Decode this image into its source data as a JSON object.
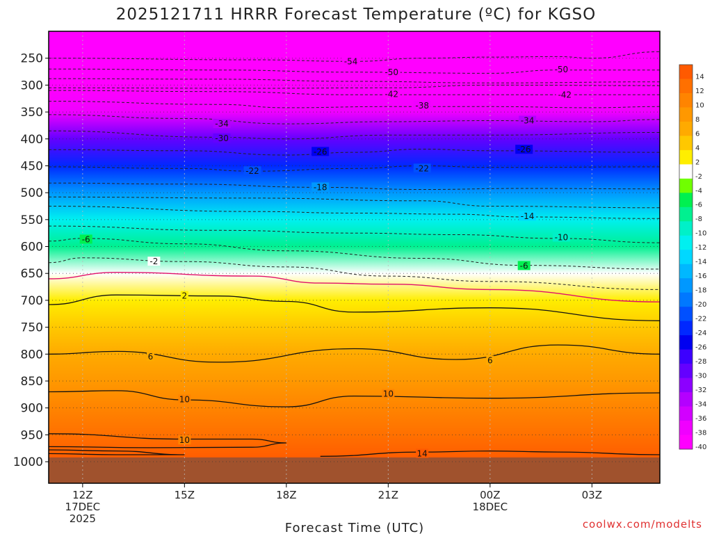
{
  "chart_data": {
    "type": "heatmap",
    "title": "2025121711 HRRR Forecast Temperature (ºC) for KGSO",
    "xlabel": "Forecast Time (UTC)",
    "credit": "coolwx.com/modelts",
    "x_ticks": [
      {
        "hour": 0,
        "lines": [
          "12Z",
          "17DEC",
          "2025"
        ]
      },
      {
        "hour": 3,
        "lines": [
          "15Z"
        ]
      },
      {
        "hour": 6,
        "lines": [
          "18Z"
        ]
      },
      {
        "hour": 9,
        "lines": [
          "21Z"
        ]
      },
      {
        "hour": 12,
        "lines": [
          "00Z",
          "18DEC"
        ]
      },
      {
        "hour": 15,
        "lines": [
          "03Z"
        ]
      }
    ],
    "x_range_hours": [
      -1,
      17
    ],
    "y_ticks_hpa": [
      250,
      300,
      350,
      400,
      450,
      500,
      550,
      600,
      650,
      700,
      750,
      800,
      850,
      900,
      950,
      1000
    ],
    "y_range_hpa": [
      200,
      1040
    ],
    "surface_pressure_hpa": 992,
    "colorbar": {
      "labels": [
        "14",
        "12",
        "10",
        "8",
        "6",
        "4",
        "2",
        "-2",
        "-4",
        "-6",
        "-8",
        "-10",
        "-12",
        "-14",
        "-16",
        "-18",
        "-20",
        "-22",
        "-24",
        "-26",
        "-28",
        "-30",
        "-32",
        "-34",
        "-36",
        "-38",
        "-40"
      ],
      "colors": [
        "#ff5a00",
        "#ff7000",
        "#ff8400",
        "#ff9800",
        "#ffaa00",
        "#ffc800",
        "#ffee00",
        "#ffffff",
        "#70ff00",
        "#00f050",
        "#00f090",
        "#00f0c8",
        "#00f0f0",
        "#00d8ff",
        "#00b8ff",
        "#0098ff",
        "#0078ff",
        "#0050ff",
        "#0028ff",
        "#0000f0",
        "#3c00ff",
        "#6400ff",
        "#8c00ff",
        "#b400ff",
        "#d200ff",
        "#f000ff",
        "#ff00ff"
      ]
    },
    "colors": {
      "ground": "#a0522d",
      "freezing_line": "#e0106a"
    },
    "profile_pressures_hpa": [
      200,
      250,
      300,
      350,
      400,
      450,
      500,
      550,
      600,
      650,
      700,
      750,
      800,
      850,
      900,
      950,
      1000
    ],
    "profile_temps_c": [
      -58,
      -54,
      -44,
      -38,
      -31,
      -24,
      -18,
      -13,
      -8,
      -3,
      2,
      4,
      6,
      8,
      10,
      12,
      14
    ],
    "isotherms": [
      {
        "label": "-54",
        "style": "dashed",
        "points": [
          [
            -1,
            250
          ],
          [
            5,
            253
          ],
          [
            8,
            256
          ],
          [
            10,
            250
          ],
          [
            12,
            248
          ],
          [
            14,
            247
          ],
          [
            15,
            250
          ],
          [
            17,
            238
          ]
        ],
        "label_at": [
          [
            7.9,
            256
          ]
        ]
      },
      {
        "label": "-50",
        "style": "dashed",
        "points": [
          [
            -1,
            270
          ],
          [
            4,
            272
          ],
          [
            8,
            276
          ],
          [
            12,
            278
          ],
          [
            14,
            272
          ],
          [
            17,
            272
          ]
        ],
        "label_at": [
          [
            9.1,
            276
          ],
          [
            14.1,
            271
          ]
        ]
      },
      {
        "label": "",
        "style": "dashed",
        "points": [
          [
            -1,
            288
          ],
          [
            4,
            289
          ],
          [
            8,
            293
          ],
          [
            12,
            296
          ],
          [
            17,
            294
          ]
        ],
        "label_at": []
      },
      {
        "label": "",
        "style": "dashed",
        "points": [
          [
            -1,
            305
          ],
          [
            5,
            306
          ],
          [
            9,
            305
          ],
          [
            12,
            300
          ],
          [
            17,
            301
          ]
        ],
        "label_at": []
      },
      {
        "label": "-42",
        "style": "dashed",
        "points": [
          [
            -1,
            310
          ],
          [
            4,
            312
          ],
          [
            8,
            318
          ],
          [
            12,
            318
          ],
          [
            17,
            318
          ]
        ],
        "label_at": [
          [
            9.1,
            317
          ],
          [
            14.2,
            318
          ]
        ]
      },
      {
        "label": "-38",
        "style": "dashed",
        "points": [
          [
            -1,
            330
          ],
          [
            4,
            336
          ],
          [
            6,
            342
          ],
          [
            9,
            340
          ],
          [
            12,
            340
          ],
          [
            15,
            342
          ],
          [
            17,
            340
          ]
        ],
        "label_at": [
          [
            10.0,
            338
          ]
        ]
      },
      {
        "label": "-34",
        "style": "dashed",
        "points": [
          [
            -1,
            355
          ],
          [
            3,
            362
          ],
          [
            6,
            372
          ],
          [
            9,
            368
          ],
          [
            12,
            366
          ],
          [
            15,
            368
          ],
          [
            17,
            364
          ]
        ],
        "label_at": [
          [
            4.1,
            372
          ],
          [
            13.1,
            366
          ]
        ]
      },
      {
        "label": "-30",
        "style": "dashed",
        "points": [
          [
            -1,
            385
          ],
          [
            4,
            397
          ],
          [
            6,
            400
          ],
          [
            9,
            393
          ],
          [
            12,
            393
          ],
          [
            17,
            388
          ]
        ],
        "label_at": [
          [
            4.1,
            399
          ]
        ]
      },
      {
        "label": "-26",
        "style": "dashed",
        "points": [
          [
            -1,
            420
          ],
          [
            3,
            422
          ],
          [
            6,
            430
          ],
          [
            8,
            425
          ],
          [
            10,
            419
          ],
          [
            12,
            422
          ],
          [
            17,
            425
          ]
        ],
        "label_at": [
          [
            7.0,
            424
          ],
          [
            13.0,
            420
          ]
        ]
      },
      {
        "label": "-22",
        "style": "dashed",
        "points": [
          [
            -1,
            452
          ],
          [
            3,
            455
          ],
          [
            5,
            460
          ],
          [
            8,
            455
          ],
          [
            10,
            450
          ],
          [
            12,
            453
          ],
          [
            17,
            452
          ]
        ],
        "label_at": [
          [
            5.0,
            460
          ],
          [
            10.0,
            455
          ]
        ]
      },
      {
        "label": "-18",
        "style": "dashed",
        "points": [
          [
            -1,
            482
          ],
          [
            3,
            484
          ],
          [
            7,
            490
          ],
          [
            10,
            494
          ],
          [
            13,
            492
          ],
          [
            17,
            493
          ]
        ],
        "label_at": [
          [
            7.0,
            490
          ]
        ]
      },
      {
        "label": "",
        "style": "dashed",
        "points": [
          [
            -1,
            508
          ],
          [
            5,
            510
          ],
          [
            10,
            515
          ],
          [
            12,
            525
          ],
          [
            17,
            528
          ]
        ],
        "label_at": []
      },
      {
        "label": "-14",
        "style": "dashed",
        "points": [
          [
            -1,
            525
          ],
          [
            5,
            535
          ],
          [
            8,
            538
          ],
          [
            11,
            540
          ],
          [
            13,
            545
          ],
          [
            17,
            548
          ]
        ],
        "label_at": [
          [
            13.1,
            544
          ]
        ]
      },
      {
        "label": "-10",
        "style": "dashed",
        "points": [
          [
            -1,
            562
          ],
          [
            4,
            570
          ],
          [
            8,
            575
          ],
          [
            11,
            578
          ],
          [
            14,
            585
          ],
          [
            17,
            593
          ]
        ],
        "label_at": [
          [
            14.1,
            583
          ]
        ]
      },
      {
        "label": "-6",
        "style": "dashed",
        "points": [
          [
            -1,
            590
          ],
          [
            0,
            585
          ],
          [
            3,
            595
          ],
          [
            6,
            608
          ],
          [
            10,
            622
          ],
          [
            13,
            635
          ],
          [
            17,
            642
          ]
        ],
        "label_at": [
          [
            0.1,
            587
          ],
          [
            13.0,
            636
          ]
        ]
      },
      {
        "label": "-2",
        "style": "dashed",
        "points": [
          [
            -1,
            630
          ],
          [
            0,
            621
          ],
          [
            3,
            628
          ],
          [
            6,
            638
          ],
          [
            9,
            655
          ],
          [
            12,
            665
          ],
          [
            17,
            680
          ]
        ],
        "label_at": [
          [
            2.1,
            628
          ]
        ]
      },
      {
        "label": "",
        "style": "freezing",
        "points": [
          [
            -1,
            660
          ],
          [
            1,
            648
          ],
          [
            5,
            655
          ],
          [
            7,
            668
          ],
          [
            9,
            670
          ],
          [
            12,
            680
          ],
          [
            17,
            703
          ]
        ],
        "label_at": []
      },
      {
        "label": "2",
        "style": "solid",
        "points": [
          [
            -1,
            708
          ],
          [
            1,
            690
          ],
          [
            4,
            692
          ],
          [
            6,
            702
          ],
          [
            8,
            722
          ],
          [
            12,
            714
          ],
          [
            17,
            738
          ]
        ],
        "label_at": [
          [
            3.0,
            692
          ]
        ]
      },
      {
        "label": "6",
        "style": "solid",
        "points": [
          [
            -1,
            800
          ],
          [
            1,
            795
          ],
          [
            4,
            815
          ],
          [
            8,
            790
          ],
          [
            11,
            810
          ],
          [
            14,
            783
          ],
          [
            17,
            800
          ]
        ],
        "label_at": [
          [
            2.0,
            805
          ],
          [
            12.0,
            812
          ]
        ]
      },
      {
        "label": "10",
        "style": "solid",
        "points": [
          [
            -1,
            870
          ],
          [
            1,
            868
          ],
          [
            3,
            885
          ],
          [
            6,
            898
          ],
          [
            8,
            878
          ],
          [
            12,
            882
          ],
          [
            17,
            872
          ]
        ],
        "label_at": [
          [
            3.0,
            884
          ],
          [
            9.0,
            874
          ]
        ]
      },
      {
        "label": "10",
        "style": "solid",
        "points": [
          [
            -1,
            948
          ],
          [
            3,
            958
          ],
          [
            5,
            958
          ],
          [
            6,
            965
          ],
          [
            5,
            973
          ],
          [
            2,
            974
          ],
          [
            -1,
            972
          ]
        ],
        "label_at": [
          [
            3.0,
            960
          ]
        ]
      },
      {
        "label": "",
        "style": "solid",
        "points": [
          [
            -1,
            978
          ],
          [
            1,
            980
          ],
          [
            3,
            987
          ],
          [
            1,
            987
          ],
          [
            -1,
            985
          ]
        ],
        "label_at": []
      },
      {
        "label": "14",
        "style": "solid",
        "points": [
          [
            7,
            990
          ],
          [
            10,
            982
          ],
          [
            12,
            980
          ],
          [
            14,
            982
          ],
          [
            17,
            987
          ]
        ],
        "label_at": [
          [
            10.0,
            985
          ]
        ]
      }
    ]
  }
}
